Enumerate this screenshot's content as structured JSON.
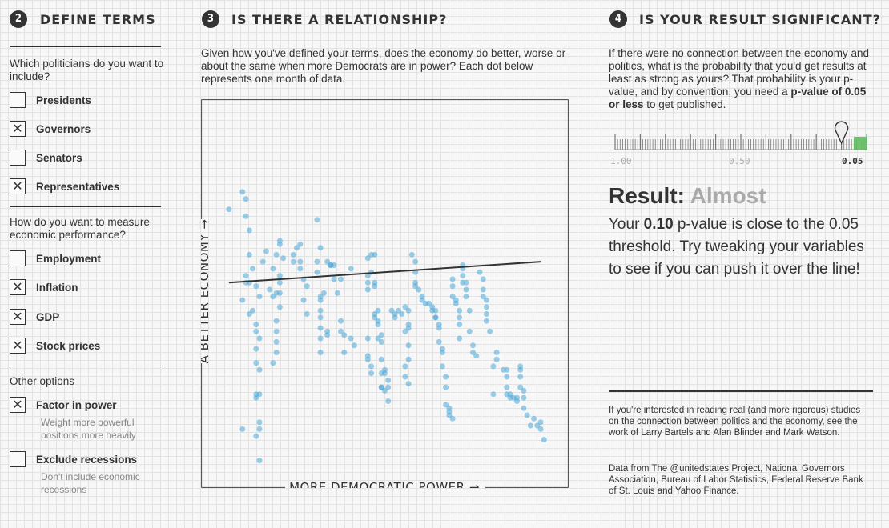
{
  "section2": {
    "number": "2",
    "title": "DEFINE TERMS",
    "q1": "Which politicians do you want to include?",
    "politicians": [
      {
        "label": "Presidents",
        "checked": false
      },
      {
        "label": "Governors",
        "checked": true
      },
      {
        "label": "Senators",
        "checked": false
      },
      {
        "label": "Representatives",
        "checked": true
      }
    ],
    "q2": "How do you want to measure economic performance?",
    "measures": [
      {
        "label": "Employment",
        "checked": false
      },
      {
        "label": "Inflation",
        "checked": true
      },
      {
        "label": "GDP",
        "checked": true
      },
      {
        "label": "Stock prices",
        "checked": true
      }
    ],
    "other_title": "Other options",
    "options": [
      {
        "label": "Factor in power",
        "checked": true,
        "note": "Weight more powerful positions more heavily"
      },
      {
        "label": "Exclude recessions",
        "checked": false,
        "note": "Don't include economic recessions"
      }
    ]
  },
  "section3": {
    "number": "3",
    "title": "IS THERE A RELATIONSHIP?",
    "intro": "Given how you've defined your terms, does the economy do better, worse or about the same when more Democrats are in power? Each dot below represents one month of data."
  },
  "section4": {
    "number": "4",
    "title": "IS YOUR RESULT SIGNIFICANT?",
    "intro_pre": "If there were no connection between the economy and politics, what is the probability that you'd get results at least as strong as yours? That probability is your p-value, and by convention, you need a ",
    "intro_bold": "p-value of 0.05 or less",
    "intro_post": " to get published.",
    "scale_labels": [
      "1.00",
      "0.50",
      "0.05"
    ],
    "p_value": 0.1,
    "result_label": "Result:",
    "result_word": "Almost",
    "result_pre": "Your ",
    "result_value": "0.10",
    "result_post": " p-value is close to the 0.05 threshold. Try tweaking your variables to see if you can push it over the line!",
    "footnote": "If you're interested in reading real (and more rigorous) studies on the connection between politics and the economy, see the work of Larry Bartels and Alan Blinder and Mark Watson.",
    "sources": "Data from The @unitedstates Project, National Governors Association, Bureau of Labor Statistics, Federal Reserve Bank of St. Louis and Yahoo Finance."
  },
  "colors": {
    "dot": "#4aa8d8",
    "line": "#333333",
    "accent_green": "#5cb85c",
    "muted": "#aaaaaa"
  },
  "chart_data": {
    "type": "scatter",
    "xlabel": "MORE DEMOCRATIC POWER →",
    "ylabel": "A BETTER ECONOMY →",
    "xlim": [
      0,
      100
    ],
    "ylim": [
      0,
      100
    ],
    "trend": [
      [
        4,
        52
      ],
      [
        96,
        58
      ]
    ],
    "points": [
      [
        4,
        73
      ],
      [
        8,
        78
      ],
      [
        9,
        76
      ],
      [
        9,
        71
      ],
      [
        10,
        67
      ],
      [
        10,
        60
      ],
      [
        8,
        47
      ],
      [
        9,
        54
      ],
      [
        10,
        52
      ],
      [
        11,
        56
      ],
      [
        11,
        44
      ],
      [
        10,
        43
      ],
      [
        12,
        40
      ],
      [
        12,
        38
      ],
      [
        12,
        33
      ],
      [
        13,
        36
      ],
      [
        12,
        29
      ],
      [
        13,
        27
      ],
      [
        13,
        20
      ],
      [
        12,
        20
      ],
      [
        12,
        19
      ],
      [
        13,
        12
      ],
      [
        13,
        10
      ],
      [
        12,
        8
      ],
      [
        8,
        10
      ],
      [
        13,
        1
      ],
      [
        9,
        52
      ],
      [
        12,
        51
      ],
      [
        13,
        48
      ],
      [
        14,
        58
      ],
      [
        15,
        61
      ],
      [
        17,
        56
      ],
      [
        16,
        50
      ],
      [
        17,
        48
      ],
      [
        18,
        60
      ],
      [
        19,
        64
      ],
      [
        19,
        63
      ],
      [
        20,
        59
      ],
      [
        19,
        54
      ],
      [
        19,
        52
      ],
      [
        19,
        49
      ],
      [
        19,
        45
      ],
      [
        18,
        49
      ],
      [
        18,
        41
      ],
      [
        18,
        38
      ],
      [
        18,
        35
      ],
      [
        18,
        32
      ],
      [
        17,
        29
      ],
      [
        23,
        60
      ],
      [
        23,
        58
      ],
      [
        24,
        62
      ],
      [
        25,
        63
      ],
      [
        25,
        58
      ],
      [
        25,
        56
      ],
      [
        26,
        53
      ],
      [
        27,
        51
      ],
      [
        26,
        47
      ],
      [
        27,
        43
      ],
      [
        30,
        70
      ],
      [
        31,
        62
      ],
      [
        30,
        58
      ],
      [
        30,
        55
      ],
      [
        31,
        47
      ],
      [
        31,
        48
      ],
      [
        31,
        39
      ],
      [
        31,
        36
      ],
      [
        31,
        32
      ],
      [
        32,
        49
      ],
      [
        31,
        44
      ],
      [
        31,
        42
      ],
      [
        33,
        58
      ],
      [
        34,
        57
      ],
      [
        35,
        53
      ],
      [
        33,
        37
      ],
      [
        33,
        38
      ],
      [
        36,
        49
      ],
      [
        37,
        38
      ],
      [
        38,
        37
      ],
      [
        38,
        32
      ],
      [
        35,
        57
      ],
      [
        34,
        57
      ],
      [
        37,
        53
      ],
      [
        37,
        41
      ],
      [
        40,
        56
      ],
      [
        40,
        36
      ],
      [
        41,
        34
      ],
      [
        45,
        59
      ],
      [
        46,
        60
      ],
      [
        46,
        55
      ],
      [
        45,
        54
      ],
      [
        45,
        52
      ],
      [
        45,
        50
      ],
      [
        45,
        36
      ],
      [
        45,
        31
      ],
      [
        45,
        30
      ],
      [
        46,
        26
      ],
      [
        46,
        28
      ],
      [
        47,
        60
      ],
      [
        47,
        52
      ],
      [
        47,
        51
      ],
      [
        47,
        42
      ],
      [
        47,
        43
      ],
      [
        48,
        44
      ],
      [
        48,
        41
      ],
      [
        48,
        40
      ],
      [
        49,
        37
      ],
      [
        48,
        36
      ],
      [
        49,
        35
      ],
      [
        49,
        30
      ],
      [
        49,
        26
      ],
      [
        49,
        22
      ],
      [
        49,
        22
      ],
      [
        50,
        27
      ],
      [
        50,
        26
      ],
      [
        50,
        21
      ],
      [
        51,
        24
      ],
      [
        51,
        22
      ],
      [
        51,
        18
      ],
      [
        52,
        44
      ],
      [
        53,
        43
      ],
      [
        53,
        42
      ],
      [
        54,
        44
      ],
      [
        55,
        43
      ],
      [
        56,
        45
      ],
      [
        56,
        38
      ],
      [
        57,
        44
      ],
      [
        57,
        40
      ],
      [
        57,
        39
      ],
      [
        57,
        34
      ],
      [
        57,
        30
      ],
      [
        56,
        28
      ],
      [
        56,
        25
      ],
      [
        57,
        23
      ],
      [
        58,
        60
      ],
      [
        59,
        58
      ],
      [
        59,
        55
      ],
      [
        59,
        52
      ],
      [
        59,
        51
      ],
      [
        60,
        50
      ],
      [
        61,
        48
      ],
      [
        61,
        47
      ],
      [
        62,
        46
      ],
      [
        63,
        46
      ],
      [
        64,
        45
      ],
      [
        64,
        44
      ],
      [
        65,
        44
      ],
      [
        65,
        42
      ],
      [
        65,
        42
      ],
      [
        66,
        40
      ],
      [
        66,
        39
      ],
      [
        66,
        35
      ],
      [
        67,
        33
      ],
      [
        67,
        32
      ],
      [
        67,
        28
      ],
      [
        68,
        25
      ],
      [
        68,
        22
      ],
      [
        68,
        17
      ],
      [
        69,
        16
      ],
      [
        69,
        15
      ],
      [
        69,
        14
      ],
      [
        70,
        13
      ],
      [
        70,
        53
      ],
      [
        70,
        51
      ],
      [
        70,
        48
      ],
      [
        71,
        47
      ],
      [
        71,
        46
      ],
      [
        72,
        44
      ],
      [
        72,
        42
      ],
      [
        72,
        40
      ],
      [
        72,
        36
      ],
      [
        73,
        57
      ],
      [
        73,
        56
      ],
      [
        73,
        54
      ],
      [
        73,
        52
      ],
      [
        74,
        52
      ],
      [
        74,
        50
      ],
      [
        74,
        48
      ],
      [
        75,
        44
      ],
      [
        75,
        38
      ],
      [
        76,
        34
      ],
      [
        76,
        32
      ],
      [
        77,
        31
      ],
      [
        78,
        55
      ],
      [
        79,
        53
      ],
      [
        79,
        50
      ],
      [
        79,
        48
      ],
      [
        80,
        47
      ],
      [
        80,
        45
      ],
      [
        80,
        43
      ],
      [
        80,
        41
      ],
      [
        81,
        38
      ],
      [
        83,
        32
      ],
      [
        83,
        30
      ],
      [
        82,
        28
      ],
      [
        82,
        20
      ],
      [
        85,
        27
      ],
      [
        86,
        27
      ],
      [
        86,
        25
      ],
      [
        86,
        22
      ],
      [
        86,
        20
      ],
      [
        87,
        20
      ],
      [
        87,
        19
      ],
      [
        88,
        19
      ],
      [
        89,
        19
      ],
      [
        89,
        18
      ],
      [
        90,
        28
      ],
      [
        90,
        27
      ],
      [
        90,
        25
      ],
      [
        90,
        22
      ],
      [
        91,
        21
      ],
      [
        91,
        19
      ],
      [
        91,
        16
      ],
      [
        92,
        14
      ],
      [
        93,
        11
      ],
      [
        94,
        13
      ],
      [
        95,
        11
      ],
      [
        96,
        10
      ],
      [
        96,
        12
      ],
      [
        97,
        7
      ]
    ]
  }
}
